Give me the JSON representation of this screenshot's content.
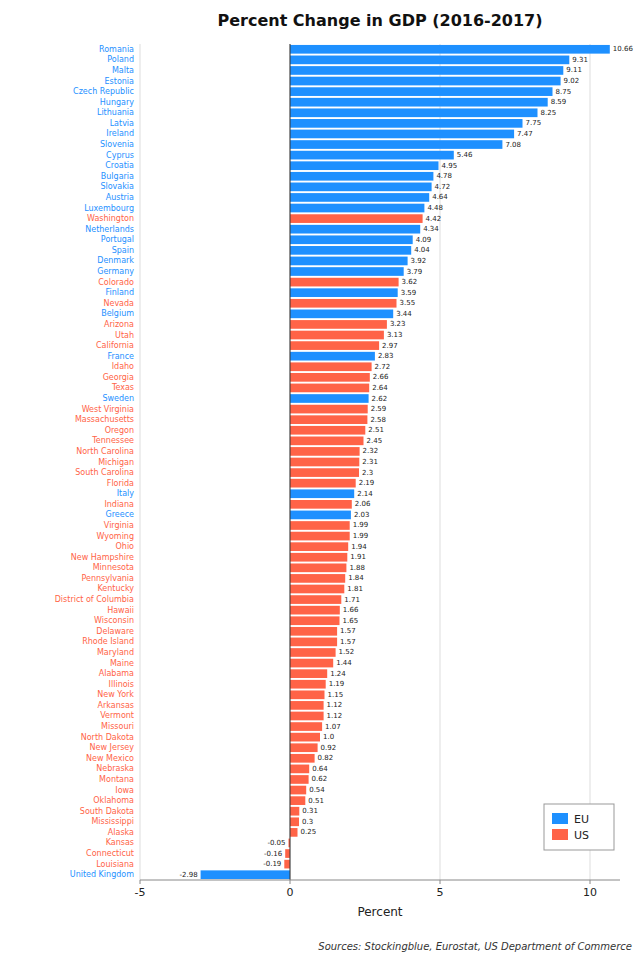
{
  "chart_data": {
    "type": "bar",
    "orientation": "horizontal",
    "title": "Percent Change in GDP (2016-2017)",
    "xlabel": "Percent",
    "annotations": [
      "Sources: Stockingblue, Eurostat, US Department of Commerce"
    ],
    "categories": [
      "Romania",
      "Poland",
      "Malta",
      "Estonia",
      "Czech Republic",
      "Hungary",
      "Lithuania",
      "Latvia",
      "Ireland",
      "Slovenia",
      "Cyprus",
      "Croatia",
      "Bulgaria",
      "Slovakia",
      "Austria",
      "Luxembourg",
      "Washington",
      "Netherlands",
      "Portugal",
      "Spain",
      "Denmark",
      "Germany",
      "Colorado",
      "Finland",
      "Nevada",
      "Belgium",
      "Arizona",
      "Utah",
      "California",
      "France",
      "Idaho",
      "Georgia",
      "Texas",
      "Sweden",
      "West Virginia",
      "Massachusetts",
      "Oregon",
      "Tennessee",
      "North Carolina",
      "Michigan",
      "South Carolina",
      "Florida",
      "Italy",
      "Indiana",
      "Greece",
      "Virginia",
      "Wyoming",
      "Ohio",
      "New Hampshire",
      "Minnesota",
      "Pennsylvania",
      "Kentucky",
      "District of Columbia",
      "Hawaii",
      "Wisconsin",
      "Delaware",
      "Rhode Island",
      "Maryland",
      "Maine",
      "Alabama",
      "Illinois",
      "New York",
      "Arkansas",
      "Vermont",
      "Missouri",
      "North Dakota",
      "New Jersey",
      "New Mexico",
      "Nebraska",
      "Montana",
      "Iowa",
      "Oklahoma",
      "South Dakota",
      "Mississippi",
      "Alaska",
      "Kansas",
      "Connecticut",
      "Louisiana",
      "United Kingdom"
    ],
    "series": [
      {
        "name": "EU",
        "color": "#1e90ff",
        "values": [
          10.66,
          9.31,
          9.11,
          9.02,
          8.75,
          8.59,
          8.25,
          7.75,
          7.47,
          7.08,
          5.46,
          4.95,
          4.78,
          4.72,
          4.64,
          4.48,
          null,
          4.34,
          4.09,
          4.04,
          3.92,
          3.79,
          null,
          3.59,
          null,
          3.44,
          null,
          null,
          null,
          2.83,
          null,
          null,
          null,
          2.62,
          null,
          null,
          null,
          null,
          null,
          null,
          null,
          null,
          2.14,
          null,
          2.03,
          null,
          null,
          null,
          null,
          null,
          null,
          null,
          null,
          null,
          null,
          null,
          null,
          null,
          null,
          null,
          null,
          null,
          null,
          null,
          null,
          null,
          null,
          null,
          null,
          null,
          null,
          null,
          null,
          null,
          null,
          null,
          null,
          null,
          -2.98
        ],
        "value_labels": [
          "10.66",
          "9.31",
          "9.11",
          "9.02",
          "8.75",
          "8.59",
          "8.25",
          "7.75",
          "7.47",
          "7.08",
          "5.46",
          "4.95",
          "4.78",
          "4.72",
          "4.64",
          "4.48",
          null,
          "4.34",
          "4.09",
          "4.04",
          "3.92",
          "3.79",
          null,
          "3.59",
          null,
          "3.44",
          null,
          null,
          null,
          "2.83",
          null,
          null,
          null,
          "2.62",
          null,
          null,
          null,
          null,
          null,
          null,
          null,
          null,
          "2.14",
          null,
          "2.03",
          null,
          null,
          null,
          null,
          null,
          null,
          null,
          null,
          null,
          null,
          null,
          null,
          null,
          null,
          null,
          null,
          null,
          null,
          null,
          null,
          null,
          null,
          null,
          null,
          null,
          null,
          null,
          null,
          null,
          null,
          null,
          null,
          null,
          "-2.98"
        ]
      },
      {
        "name": "US",
        "color": "#ff6347",
        "values": [
          null,
          null,
          null,
          null,
          null,
          null,
          null,
          null,
          null,
          null,
          null,
          null,
          null,
          null,
          null,
          null,
          4.42,
          null,
          null,
          null,
          null,
          null,
          3.62,
          null,
          3.55,
          null,
          3.23,
          3.13,
          2.97,
          null,
          2.72,
          2.66,
          2.64,
          null,
          2.59,
          2.58,
          2.51,
          2.45,
          2.32,
          2.31,
          2.3,
          2.19,
          null,
          2.06,
          null,
          1.99,
          1.99,
          1.94,
          1.91,
          1.88,
          1.84,
          1.81,
          1.71,
          1.66,
          1.65,
          1.57,
          1.57,
          1.52,
          1.44,
          1.24,
          1.19,
          1.15,
          1.12,
          1.12,
          1.07,
          1.0,
          0.92,
          0.82,
          0.64,
          0.62,
          0.54,
          0.51,
          0.31,
          0.3,
          0.25,
          -0.05,
          -0.16,
          -0.19,
          null
        ],
        "value_labels": [
          null,
          null,
          null,
          null,
          null,
          null,
          null,
          null,
          null,
          null,
          null,
          null,
          null,
          null,
          null,
          null,
          "4.42",
          null,
          null,
          null,
          null,
          null,
          "3.62",
          null,
          "3.55",
          null,
          "3.23",
          "3.13",
          "2.97",
          null,
          "2.72",
          "2.66",
          "2.64",
          null,
          "2.59",
          "2.58",
          "2.51",
          "2.45",
          "2.32",
          "2.31",
          "2.3",
          "2.19",
          null,
          "2.06",
          null,
          "1.99",
          "1.99",
          "1.94",
          "1.91",
          "1.88",
          "1.84",
          "1.81",
          "1.71",
          "1.66",
          "1.65",
          "1.57",
          "1.57",
          "1.52",
          "1.44",
          "1.24",
          "1.19",
          "1.15",
          "1.12",
          "1.12",
          "1.07",
          "1.0",
          "0.92",
          "0.82",
          "0.64",
          "0.62",
          "0.54",
          "0.51",
          "0.31",
          "0.3",
          "0.25",
          "-0.05",
          "-0.16",
          "-0.19",
          null
        ]
      }
    ],
    "xlim": [
      -5,
      11
    ],
    "xticks": [
      -5,
      0,
      5,
      10
    ],
    "grid": true,
    "data_labels": true,
    "legend": "lower right"
  }
}
